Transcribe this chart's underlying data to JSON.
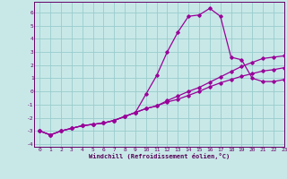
{
  "title": "",
  "xlabel": "Windchill (Refroidissement éolien,°C)",
  "background_color": "#c8e8e8",
  "grid_color": "#99cccc",
  "line_color": "#990099",
  "xlim": [
    -0.5,
    23
  ],
  "ylim": [
    -4.2,
    6.8
  ],
  "xticks": [
    0,
    1,
    2,
    3,
    4,
    5,
    6,
    7,
    8,
    9,
    10,
    11,
    12,
    13,
    14,
    15,
    16,
    17,
    18,
    19,
    20,
    21,
    22,
    23
  ],
  "yticks": [
    -4,
    -3,
    -2,
    -1,
    0,
    1,
    2,
    3,
    4,
    5,
    6
  ],
  "series": [
    {
      "x": [
        0,
        1,
        2,
        3,
        4,
        5,
        6,
        7,
        8,
        9,
        10,
        11,
        12,
        13,
        14,
        15,
        16,
        17,
        18,
        19,
        20,
        21,
        22,
        23
      ],
      "y": [
        -3.0,
        -3.3,
        -3.0,
        -2.8,
        -2.6,
        -2.5,
        -2.4,
        -2.2,
        -1.9,
        -1.6,
        -0.2,
        1.2,
        3.0,
        4.5,
        5.7,
        5.8,
        6.3,
        5.7,
        2.6,
        2.4,
        1.0,
        0.75,
        0.75,
        0.9
      ]
    },
    {
      "x": [
        0,
        1,
        2,
        3,
        4,
        5,
        6,
        7,
        8,
        9,
        10,
        11,
        12,
        13,
        14,
        15,
        16,
        17,
        18,
        19,
        20,
        21,
        22,
        23
      ],
      "y": [
        -3.0,
        -3.3,
        -3.0,
        -2.8,
        -2.6,
        -2.5,
        -2.4,
        -2.2,
        -1.9,
        -1.6,
        -1.3,
        -1.1,
        -0.8,
        -0.6,
        -0.3,
        0.0,
        0.35,
        0.65,
        0.9,
        1.15,
        1.35,
        1.55,
        1.65,
        1.8
      ]
    },
    {
      "x": [
        0,
        1,
        2,
        3,
        4,
        5,
        6,
        7,
        8,
        9,
        10,
        11,
        12,
        13,
        14,
        15,
        16,
        17,
        18,
        19,
        20,
        21,
        22,
        23
      ],
      "y": [
        -3.0,
        -3.3,
        -3.0,
        -2.8,
        -2.6,
        -2.5,
        -2.4,
        -2.2,
        -1.9,
        -1.6,
        -1.3,
        -1.1,
        -0.7,
        -0.35,
        0.0,
        0.3,
        0.7,
        1.1,
        1.5,
        1.9,
        2.2,
        2.5,
        2.6,
        2.7
      ]
    }
  ]
}
